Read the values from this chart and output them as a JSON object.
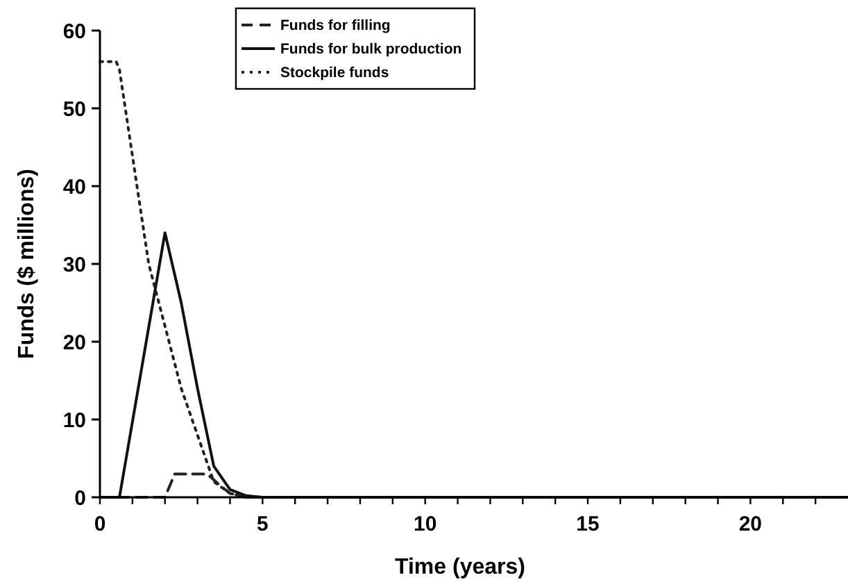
{
  "chart_data": {
    "type": "line",
    "xlabel": "Time (years)",
    "ylabel": "Funds ($ millions)",
    "xlim": [
      0,
      23
    ],
    "xticks": [
      0,
      {
        "value": 1,
        "label": null
      },
      {
        "value": 2,
        "label": null
      },
      {
        "value": 3,
        "label": null
      },
      {
        "value": 4,
        "label": null
      },
      5,
      {
        "value": 6,
        "label": null
      },
      {
        "value": 7,
        "label": null
      },
      {
        "value": 8,
        "label": null
      },
      {
        "value": 9,
        "label": null
      },
      10,
      {
        "value": 11,
        "label": null
      },
      {
        "value": 12,
        "label": null
      },
      {
        "value": 13,
        "label": null
      },
      {
        "value": 14,
        "label": null
      },
      15,
      {
        "value": 16,
        "label": null
      },
      {
        "value": 17,
        "label": null
      },
      {
        "value": 18,
        "label": null
      },
      {
        "value": 19,
        "label": null
      },
      20,
      {
        "value": 21,
        "label": null
      },
      {
        "value": 22,
        "label": null
      }
    ],
    "ylim": [
      0,
      60
    ],
    "yticks": [
      0,
      10,
      20,
      30,
      40,
      50,
      60
    ],
    "grid": false,
    "legend": "top",
    "series": [
      {
        "name": "Funds for filling",
        "color": "#222222",
        "line_style": "dashed",
        "x": [
          0,
          2,
          2.3,
          3.3,
          3.7,
          4,
          4.5,
          23
        ],
        "values": [
          0,
          0,
          3,
          3,
          1.5,
          0.5,
          0,
          0
        ]
      },
      {
        "name": "Funds for bulk production",
        "color": "#111111",
        "line_style": "solid",
        "x": [
          0,
          0.6,
          2,
          2.5,
          3,
          3.5,
          4,
          4.5,
          5,
          23
        ],
        "values": [
          0,
          0,
          34,
          25,
          14,
          4,
          1,
          0.2,
          0,
          0
        ]
      },
      {
        "name": "Stockpile funds",
        "color": "#222222",
        "line_style": "dotted",
        "x": [
          0,
          0.5,
          0.6,
          1.5,
          2,
          2.5,
          3,
          3.5,
          4,
          4.5,
          23
        ],
        "values": [
          56,
          56,
          55,
          30,
          22,
          14,
          8,
          2,
          0.5,
          0,
          0
        ]
      }
    ]
  }
}
